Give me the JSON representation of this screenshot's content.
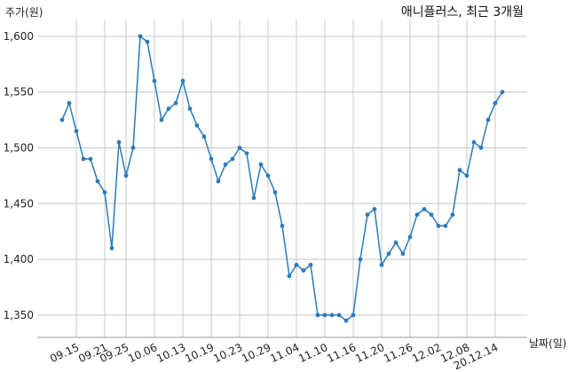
{
  "chart_data": {
    "type": "line",
    "title": "애니플러스, 최근 3개월",
    "ylabel": "주가(원)",
    "xlabel": "날짜(일)",
    "ylim": [
      1330,
      1615
    ],
    "yticks": [
      1350,
      1400,
      1450,
      1500,
      1550,
      1600
    ],
    "ytick_labels": [
      "1,350",
      "1,400",
      "1,450",
      "1,500",
      "1,550",
      "1,600"
    ],
    "xticks": [
      {
        "label": "09.15",
        "index": 2
      },
      {
        "label": "09.21",
        "index": 6
      },
      {
        "label": "09.25",
        "index": 9
      },
      {
        "label": "10.06",
        "index": 13
      },
      {
        "label": "10.13",
        "index": 17
      },
      {
        "label": "10.19",
        "index": 21
      },
      {
        "label": "10.23",
        "index": 25
      },
      {
        "label": "10.29",
        "index": 29
      },
      {
        "label": "11.04",
        "index": 33
      },
      {
        "label": "11.10",
        "index": 37
      },
      {
        "label": "11.16",
        "index": 41
      },
      {
        "label": "11.20",
        "index": 45
      },
      {
        "label": "11.26",
        "index": 49
      },
      {
        "label": "12.02",
        "index": 53
      },
      {
        "label": "12.08",
        "index": 57
      },
      {
        "label": "20.12.14",
        "index": 61
      }
    ],
    "grid": true,
    "line_color": "#2b7bb9",
    "series": [
      {
        "values": [
          1525,
          1540,
          1515,
          1490,
          1490,
          1470,
          1460,
          1410,
          1505,
          1475,
          1500,
          1600,
          1595,
          1560,
          1525,
          1535,
          1540,
          1560,
          1535,
          1520,
          1510,
          1490,
          1470,
          1485,
          1490,
          1500,
          1495,
          1455,
          1485,
          1475,
          1460,
          1430,
          1385,
          1395,
          1390,
          1395,
          1350,
          1350,
          1350,
          1350,
          1345,
          1350,
          1400,
          1440,
          1445,
          1395,
          1405,
          1415,
          1405,
          1420,
          1440,
          1445,
          1440,
          1430,
          1430,
          1440,
          1480,
          1475,
          1505,
          1500,
          1525,
          1540,
          1550
        ]
      }
    ]
  }
}
